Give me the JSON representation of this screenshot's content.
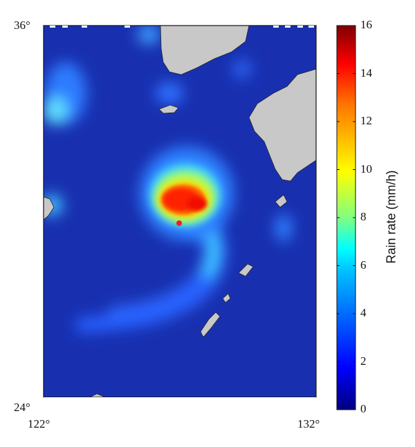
{
  "map": {
    "lat_labels": [
      "36°",
      "24°"
    ],
    "lon_labels": [
      "122°",
      "132°"
    ],
    "lat_range": [
      24,
      36
    ],
    "lon_range": [
      122,
      132
    ],
    "storm_center_marker_color": "#e8202a",
    "land_color": "#c8c8c8",
    "background_rain_color": "#1830b0"
  },
  "colorbar": {
    "title": "Rain rate (mm/h)",
    "ticks": [
      "16",
      "14",
      "12",
      "10",
      "8",
      "6",
      "4",
      "2",
      "0"
    ],
    "range": [
      0,
      16
    ],
    "colormap": "jet",
    "colors": [
      "#00007f",
      "#0000ff",
      "#0080ff",
      "#00ffff",
      "#80ff80",
      "#ffff00",
      "#ff8000",
      "#ff0000",
      "#7f0000"
    ]
  }
}
